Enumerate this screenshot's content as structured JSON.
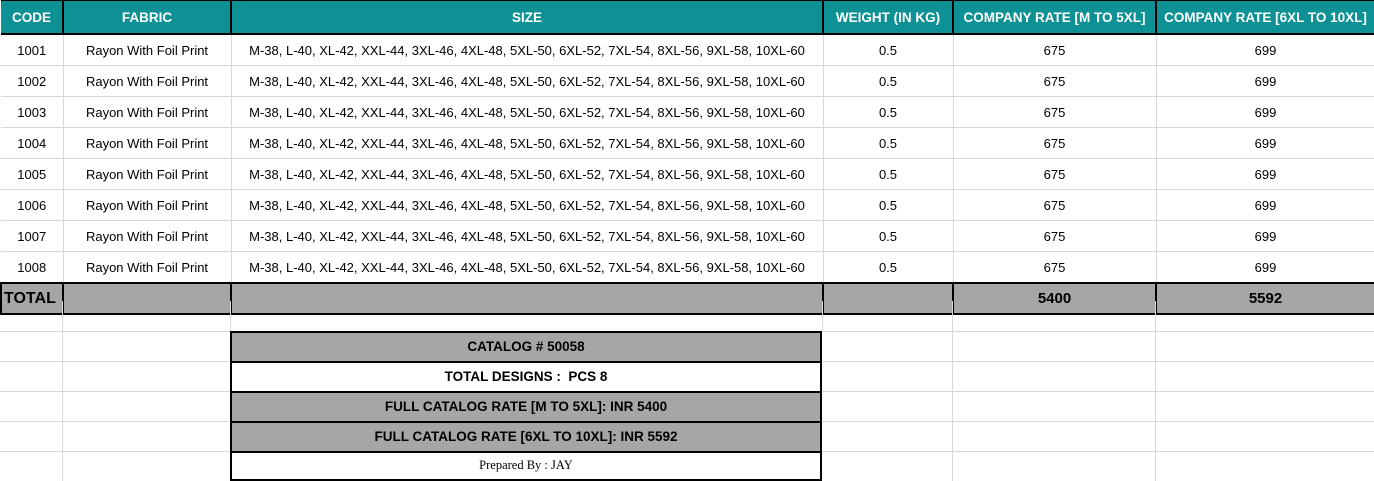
{
  "theme": {
    "header_bg": "#0d9194",
    "header_text": "#ffffff",
    "total_row_bg": "#a6a6a6",
    "summary_gray_bg": "#a6a6a6",
    "gridline_color": "#d9d9d9",
    "border_color": "#000000"
  },
  "table": {
    "columns": [
      {
        "key": "code",
        "label": "CODE"
      },
      {
        "key": "fabric",
        "label": "FABRIC"
      },
      {
        "key": "size",
        "label": "SIZE"
      },
      {
        "key": "weight",
        "label": "WEIGHT (IN KG)"
      },
      {
        "key": "rate_m_5xl",
        "label": "COMPANY RATE [M TO 5XL]"
      },
      {
        "key": "rate_6xl_10xl",
        "label": "COMPANY RATE [6XL TO 10XL]"
      }
    ],
    "rows": [
      {
        "code": "1001",
        "fabric": "Rayon With Foil Print",
        "size": "M-38, L-40, XL-42, XXL-44, 3XL-46, 4XL-48, 5XL-50, 6XL-52, 7XL-54, 8XL-56, 9XL-58, 10XL-60",
        "weight": "0.5",
        "rate_m_5xl": "675",
        "rate_6xl_10xl": "699"
      },
      {
        "code": "1002",
        "fabric": "Rayon With Foil Print",
        "size": "M-38, L-40, XL-42, XXL-44, 3XL-46, 4XL-48, 5XL-50, 6XL-52, 7XL-54, 8XL-56, 9XL-58, 10XL-60",
        "weight": "0.5",
        "rate_m_5xl": "675",
        "rate_6xl_10xl": "699"
      },
      {
        "code": "1003",
        "fabric": "Rayon With Foil Print",
        "size": "M-38, L-40, XL-42, XXL-44, 3XL-46, 4XL-48, 5XL-50, 6XL-52, 7XL-54, 8XL-56, 9XL-58, 10XL-60",
        "weight": "0.5",
        "rate_m_5xl": "675",
        "rate_6xl_10xl": "699"
      },
      {
        "code": "1004",
        "fabric": "Rayon With Foil Print",
        "size": "M-38, L-40, XL-42, XXL-44, 3XL-46, 4XL-48, 5XL-50, 6XL-52, 7XL-54, 8XL-56, 9XL-58, 10XL-60",
        "weight": "0.5",
        "rate_m_5xl": "675",
        "rate_6xl_10xl": "699"
      },
      {
        "code": "1005",
        "fabric": "Rayon With Foil Print",
        "size": "M-38, L-40, XL-42, XXL-44, 3XL-46, 4XL-48, 5XL-50, 6XL-52, 7XL-54, 8XL-56, 9XL-58, 10XL-60",
        "weight": "0.5",
        "rate_m_5xl": "675",
        "rate_6xl_10xl": "699"
      },
      {
        "code": "1006",
        "fabric": "Rayon With Foil Print",
        "size": "M-38, L-40, XL-42, XXL-44, 3XL-46, 4XL-48, 5XL-50, 6XL-52, 7XL-54, 8XL-56, 9XL-58, 10XL-60",
        "weight": "0.5",
        "rate_m_5xl": "675",
        "rate_6xl_10xl": "699"
      },
      {
        "code": "1007",
        "fabric": "Rayon With Foil Print",
        "size": "M-38, L-40, XL-42, XXL-44, 3XL-46, 4XL-48, 5XL-50, 6XL-52, 7XL-54, 8XL-56, 9XL-58, 10XL-60",
        "weight": "0.5",
        "rate_m_5xl": "675",
        "rate_6xl_10xl": "699"
      },
      {
        "code": "1008",
        "fabric": "Rayon With Foil Print",
        "size": "M-38, L-40, XL-42, XXL-44, 3XL-46, 4XL-48, 5XL-50, 6XL-52, 7XL-54, 8XL-56, 9XL-58, 10XL-60",
        "weight": "0.5",
        "rate_m_5xl": "675",
        "rate_6xl_10xl": "699"
      }
    ],
    "total": {
      "label": "TOTAL",
      "rate_m_5xl": "5400",
      "rate_6xl_10xl": "5592"
    }
  },
  "summary": {
    "boxes": [
      {
        "id": "catalog",
        "text": "CATALOG # 50058",
        "bg": "gray"
      },
      {
        "id": "designs",
        "text": "TOTAL DESIGNS :  PCS 8",
        "bg": "white"
      },
      {
        "id": "rate-m-5xl",
        "text": "FULL CATALOG RATE [M TO 5XL]: INR 5400",
        "bg": "gray"
      },
      {
        "id": "rate-6xl-10xl",
        "text": "FULL CATALOG RATE [6XL TO 10XL]: INR 5592",
        "bg": "gray"
      },
      {
        "id": "prepared-by",
        "text": "Prepared By : JAY",
        "bg": "white",
        "serif": true
      }
    ]
  }
}
